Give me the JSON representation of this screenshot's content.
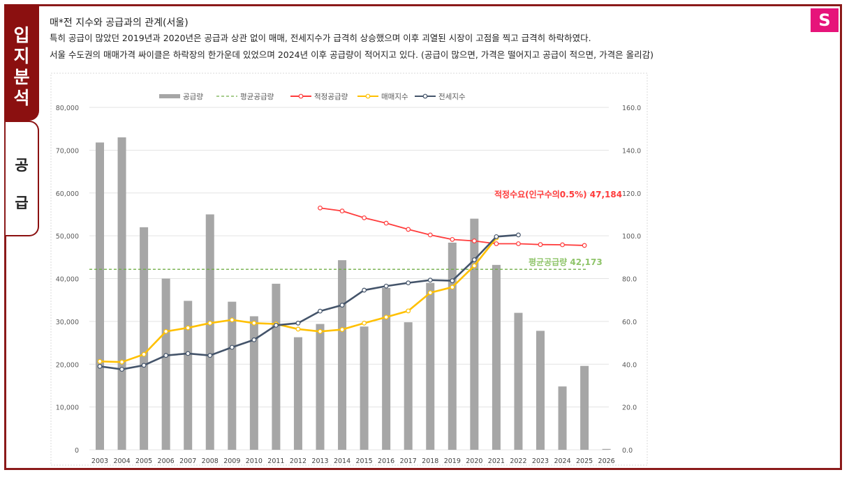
{
  "sidebar": {
    "tabs": [
      {
        "label": "입지분석",
        "chars": [
          "입",
          "지",
          "분",
          "석"
        ],
        "active": true
      },
      {
        "label": "공급",
        "chars": [
          "공",
          "급"
        ],
        "active": false
      }
    ]
  },
  "badge": "S",
  "header": {
    "title": "매*전 지수와 공급과의 관계(서울)",
    "line1": "특히 공급이 많았던 2019년과 2020년은 공급과 상관 없이 매매, 전세지수가 급격히 상승했으며 이후 괴열된 시장이 고점을 찍고 급격히 하락하였다.",
    "line2": "서울 수도권의 매매가격 싸이클은 하락장의 한가운데 있었으며 2024년 이후 공급량이 적어지고 있다. (공급이 많으면, 가격은 떨어지고 공급이 적으면, 가격은 올리감)"
  },
  "colors": {
    "frame": "#8b1a1a",
    "badge": "#e6147a",
    "supply": "#a6a6a6",
    "avg": "#70ad47",
    "proper": "#ff3b3b",
    "sale": "#ffc000",
    "jeonse": "#44546a"
  },
  "chart_data": {
    "type": "bar",
    "categories": [
      "2003",
      "2004",
      "2005",
      "2006",
      "2007",
      "2008",
      "2009",
      "2010",
      "2011",
      "2012",
      "2013",
      "2014",
      "2015",
      "2016",
      "2017",
      "2018",
      "2019",
      "2020",
      "2021",
      "2022",
      "2023",
      "2024",
      "2025",
      "2026"
    ],
    "series": [
      {
        "name": "공급량",
        "type": "bar",
        "axis": "left",
        "values": [
          71800,
          73000,
          52000,
          40000,
          34800,
          55000,
          34600,
          31200,
          38800,
          26300,
          29400,
          44300,
          28800,
          37800,
          29800,
          39000,
          48400,
          54000,
          43200,
          32000,
          27800,
          14800,
          19600,
          200
        ]
      },
      {
        "name": "평균공급량",
        "type": "dashed-line",
        "axis": "left",
        "value": 42173
      },
      {
        "name": "적정공급량",
        "type": "line",
        "axis": "right",
        "values": [
          null,
          null,
          null,
          null,
          null,
          null,
          null,
          null,
          null,
          null,
          113.0,
          111.6,
          108.4,
          105.9,
          103.0,
          100.4,
          98.3,
          97.6,
          96.3,
          96.3,
          95.9,
          95.8,
          95.5,
          null
        ]
      },
      {
        "name": "매매지수",
        "type": "line",
        "axis": "right",
        "values": [
          41.3,
          41.0,
          44.6,
          55.3,
          57.0,
          59.2,
          60.7,
          59.2,
          58.8,
          56.4,
          55.3,
          56.2,
          59.2,
          62.0,
          64.9,
          73.4,
          76.0,
          86.0,
          99.0,
          null,
          null,
          null,
          null,
          null
        ]
      },
      {
        "name": "전세지수",
        "type": "line",
        "axis": "right",
        "values": [
          39.0,
          37.6,
          39.5,
          44.1,
          45.0,
          44.1,
          47.9,
          51.4,
          58.2,
          59.2,
          64.8,
          67.6,
          74.6,
          76.5,
          78.0,
          79.3,
          79.0,
          88.8,
          99.6,
          100.4,
          null,
          null,
          null,
          null
        ]
      }
    ],
    "y_left": {
      "ticks": [
        "0",
        "10,000",
        "20,000",
        "30,000",
        "40,000",
        "50,000",
        "60,000",
        "70,000",
        "80,000"
      ],
      "ylim": [
        0,
        80000
      ]
    },
    "y_right": {
      "ticks": [
        "0.0",
        "20.0",
        "40.0",
        "60.0",
        "80.0",
        "100.0",
        "120.0",
        "140.0",
        "160.0"
      ],
      "ylim": [
        0,
        160
      ]
    },
    "legend": {
      "placement": "top-center",
      "items": [
        "공급량",
        "평균공급량",
        "적정공급량",
        "매매지수",
        "전세지수"
      ]
    },
    "annotations": {
      "proper": "적정수요(인구수의0.5%)  47,184",
      "avg": "평균공급량  42,173"
    },
    "grid": true
  }
}
